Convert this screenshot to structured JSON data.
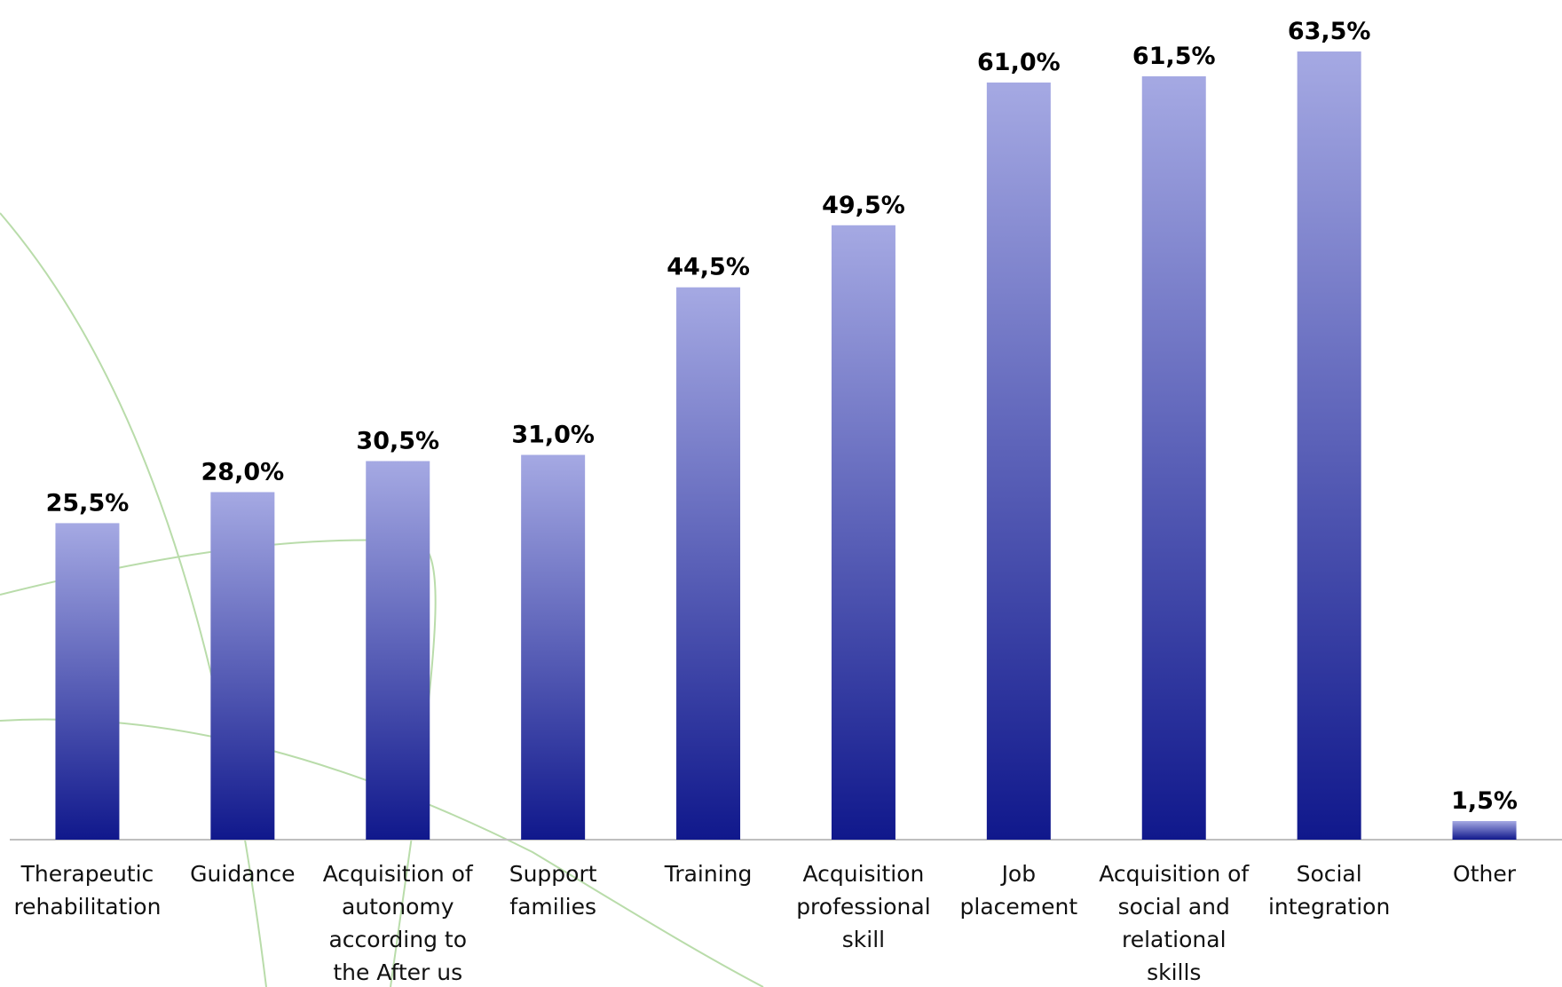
{
  "chart_data": {
    "type": "bar",
    "categories": [
      "Therapeutic\nrehabilitation",
      "Guidance",
      "Acquisition of\nautonomy\naccording to\nthe After us",
      "Support\nfamilies",
      "Training",
      "Acquisition\nprofessional\nskill",
      "Job\nplacement",
      "Acquisition of\nsocial and\nrelational\nskills",
      "Social\nintegration",
      "Other"
    ],
    "values": [
      25.5,
      28.0,
      30.5,
      31.0,
      44.5,
      49.5,
      61.0,
      61.5,
      63.5,
      1.5
    ],
    "value_labels": [
      "25,5%",
      "28,0%",
      "30,5%",
      "31,0%",
      "44,5%",
      "49,5%",
      "61,0%",
      "61,5%",
      "63,5%",
      "1,5%"
    ],
    "color": "#a5a9e3",
    "color_bottom": "#10188c"
  }
}
